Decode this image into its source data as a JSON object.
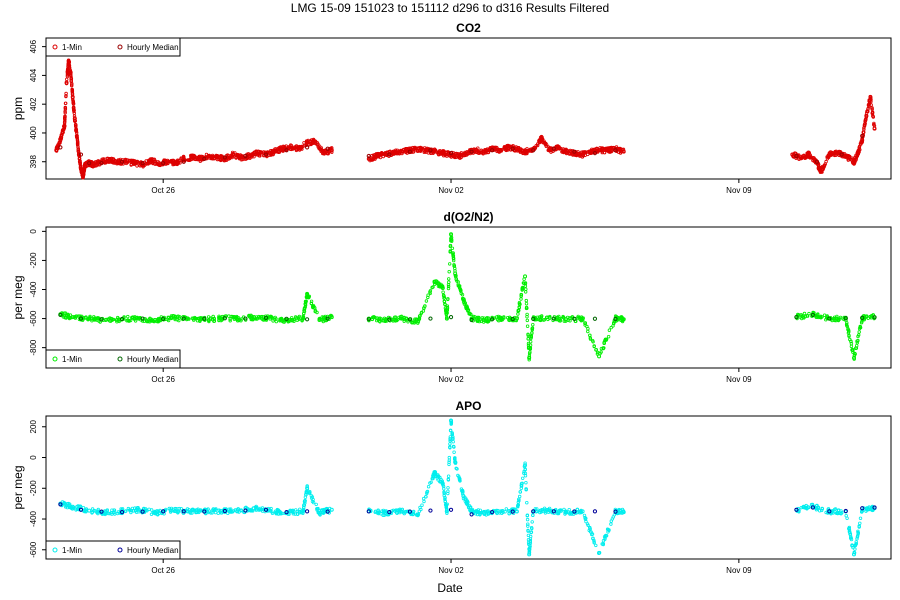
{
  "title": "LMG   15-09    151023 to 151112    d296 to d316   Results Filtered",
  "xlabel": "Date",
  "chart_data": [
    {
      "type": "scatter",
      "title": "CO2",
      "ylabel": "ppm",
      "xlim": [
        296.15,
        316.7
      ],
      "ylim": [
        396.8,
        406.6
      ],
      "yticks": [
        398,
        400,
        402,
        404,
        406
      ],
      "xticks": [
        {
          "value": 299,
          "label": "Oct 26"
        },
        {
          "value": 306,
          "label": "Nov 02"
        },
        {
          "value": 313,
          "label": "Nov 09"
        }
      ],
      "legend": {
        "position": "top-left",
        "entries": [
          "1-Min",
          "Hourly Median"
        ]
      },
      "colors": {
        "min": "#dd0000",
        "median": "#990000"
      },
      "series": [
        {
          "name": "1-Min",
          "x": [
            296.4,
            296.5,
            296.6,
            296.65,
            296.7,
            296.75,
            296.8,
            296.85,
            296.9,
            296.95,
            297.0,
            297.05,
            297.1,
            297.2,
            297.3,
            297.5,
            297.7,
            297.9,
            298.1,
            298.3,
            298.5,
            298.7,
            298.9,
            299.1,
            299.3,
            299.5,
            299.7,
            299.9,
            300.1,
            300.3,
            300.5,
            300.7,
            300.9,
            301.1,
            301.3,
            301.5,
            301.7,
            301.9,
            302.1,
            302.3,
            302.5,
            302.7,
            302.9,
            303.1,
            304.0,
            304.2,
            304.4,
            304.6,
            304.8,
            305.0,
            305.2,
            305.4,
            305.6,
            305.8,
            306.0,
            306.2,
            306.4,
            306.6,
            306.8,
            307.0,
            307.2,
            307.4,
            307.6,
            307.8,
            308.0,
            308.2,
            308.4,
            308.6,
            308.8,
            309.0,
            309.2,
            309.4,
            309.6,
            309.8,
            310.0,
            310.2,
            314.3,
            314.5,
            314.7,
            314.9,
            315.0,
            315.2,
            315.4,
            315.6,
            315.8,
            315.9,
            316.0,
            316.1,
            316.2,
            316.3
          ],
          "y": [
            398.8,
            399.5,
            400.5,
            403.5,
            405.0,
            404.2,
            402.5,
            401.0,
            399.8,
            398.5,
            397.5,
            397.0,
            397.8,
            397.9,
            397.8,
            398.0,
            398.1,
            398.0,
            398.0,
            397.9,
            397.8,
            398.1,
            397.9,
            398.0,
            397.9,
            398.2,
            398.3,
            398.2,
            398.4,
            398.3,
            398.2,
            398.5,
            398.3,
            398.4,
            398.6,
            398.5,
            398.7,
            398.9,
            399.0,
            398.9,
            399.3,
            399.4,
            398.6,
            398.8,
            398.2,
            398.4,
            398.5,
            398.6,
            398.7,
            398.8,
            398.9,
            398.8,
            398.7,
            398.6,
            398.5,
            398.4,
            398.6,
            398.8,
            398.7,
            398.9,
            398.8,
            399.0,
            398.9,
            398.7,
            398.9,
            399.6,
            398.8,
            399.0,
            398.7,
            398.6,
            398.5,
            398.7,
            398.8,
            398.8,
            398.9,
            398.7,
            398.5,
            398.3,
            398.5,
            397.9,
            397.3,
            398.5,
            398.6,
            398.4,
            398.0,
            398.6,
            399.5,
            401.2,
            402.5,
            400.3
          ]
        },
        {
          "name": "Hourly Median",
          "x": [
            296.5,
            297.0,
            297.2,
            297.5,
            298.0,
            298.5,
            299.0,
            299.5,
            300.0,
            300.5,
            301.0,
            301.5,
            302.0,
            302.5,
            303.0,
            304.0,
            304.5,
            305.0,
            305.5,
            306.0,
            306.5,
            307.0,
            307.5,
            308.0,
            308.5,
            309.0,
            309.5,
            310.0,
            314.4,
            314.9,
            315.5,
            316.0
          ],
          "y": [
            399.0,
            398.5,
            397.9,
            397.9,
            398.0,
            397.9,
            397.9,
            398.0,
            398.2,
            398.3,
            398.4,
            398.5,
            398.8,
            399.0,
            398.9,
            398.4,
            398.5,
            398.7,
            398.8,
            398.6,
            398.7,
            398.8,
            398.9,
            398.8,
            398.9,
            398.7,
            398.6,
            398.8,
            398.4,
            398.0,
            398.5,
            399.8
          ]
        }
      ]
    },
    {
      "type": "scatter",
      "title": "d(O2/N2)",
      "ylabel": "per meg",
      "xlim": [
        296.15,
        316.7
      ],
      "ylim": [
        -940,
        30
      ],
      "yticks": [
        -800,
        -600,
        -400,
        -200,
        0
      ],
      "xticks": [
        {
          "value": 299,
          "label": "Oct 26"
        },
        {
          "value": 306,
          "label": "Nov 02"
        },
        {
          "value": 313,
          "label": "Nov 09"
        }
      ],
      "legend": {
        "position": "bottom-left",
        "entries": [
          "1-Min",
          "Hourly Median"
        ]
      },
      "colors": {
        "min": "#00ee00",
        "median": "#006600"
      },
      "series": [
        {
          "name": "1-Min",
          "x": [
            296.5,
            296.8,
            297.2,
            297.6,
            298.0,
            298.4,
            298.8,
            299.2,
            299.6,
            300.0,
            300.4,
            300.8,
            301.2,
            301.6,
            302.0,
            302.4,
            302.5,
            302.8,
            303.1,
            304.0,
            304.4,
            304.8,
            305.2,
            305.6,
            305.8,
            305.9,
            306.0,
            306.1,
            306.3,
            306.5,
            306.8,
            307.2,
            307.6,
            307.8,
            307.9,
            308.0,
            308.4,
            308.8,
            309.2,
            309.6,
            310.0,
            310.2,
            314.4,
            314.8,
            315.2,
            315.6,
            315.8,
            316.0,
            316.3
          ],
          "y": [
            -570,
            -590,
            -600,
            -610,
            -605,
            -600,
            -610,
            -595,
            -600,
            -605,
            -598,
            -602,
            -590,
            -600,
            -610,
            -600,
            -430,
            -610,
            -590,
            -600,
            -610,
            -600,
            -620,
            -350,
            -390,
            -600,
            -20,
            -290,
            -470,
            -600,
            -610,
            -600,
            -600,
            -310,
            -870,
            -600,
            -595,
            -605,
            -600,
            -860,
            -600,
            -605,
            -590,
            -570,
            -600,
            -600,
            -870,
            -595,
            -590
          ]
        },
        {
          "name": "Hourly Median",
          "x": [
            296.5,
            297.0,
            297.5,
            298.0,
            298.5,
            299.0,
            299.5,
            300.0,
            300.5,
            301.0,
            301.5,
            302.0,
            302.5,
            303.0,
            304.0,
            304.5,
            305.0,
            305.5,
            306.0,
            306.5,
            307.0,
            307.5,
            308.0,
            308.5,
            309.0,
            309.5,
            310.0,
            314.4,
            314.8,
            315.2,
            315.6,
            316.0,
            316.3
          ],
          "y": [
            -575,
            -600,
            -605,
            -603,
            -600,
            -602,
            -600,
            -601,
            -598,
            -600,
            -595,
            -602,
            -605,
            -600,
            -605,
            -607,
            -605,
            -600,
            -590,
            -610,
            -605,
            -603,
            -602,
            -600,
            -602,
            -601,
            -603,
            -590,
            -575,
            -600,
            -598,
            -595,
            -592
          ]
        }
      ]
    },
    {
      "type": "scatter",
      "title": "APO",
      "ylabel": "per meg",
      "xlim": [
        296.15,
        316.7
      ],
      "ylim": [
        -660,
        270
      ],
      "yticks": [
        -600,
        -400,
        -200,
        0,
        200
      ],
      "xticks": [
        {
          "value": 299,
          "label": "Oct 26"
        },
        {
          "value": 306,
          "label": "Nov 02"
        },
        {
          "value": 313,
          "label": "Nov 09"
        }
      ],
      "legend": {
        "position": "bottom-left",
        "entries": [
          "1-Min",
          "Hourly Median"
        ]
      },
      "colors": {
        "min": "#00eeee",
        "median": "#000099"
      },
      "series": [
        {
          "name": "1-Min",
          "x": [
            296.5,
            296.8,
            297.2,
            297.6,
            298.0,
            298.4,
            298.8,
            299.2,
            299.6,
            300.0,
            300.4,
            300.8,
            301.2,
            301.6,
            302.0,
            302.4,
            302.5,
            302.8,
            303.1,
            304.0,
            304.4,
            304.8,
            305.2,
            305.6,
            305.8,
            305.9,
            306.0,
            306.1,
            306.3,
            306.5,
            306.8,
            307.2,
            307.6,
            307.8,
            307.9,
            308.0,
            308.4,
            308.8,
            309.2,
            309.6,
            310.0,
            310.2,
            314.4,
            314.8,
            315.2,
            315.6,
            315.8,
            316.0,
            316.3
          ],
          "y": [
            -300,
            -320,
            -345,
            -355,
            -350,
            -340,
            -360,
            -345,
            -350,
            -352,
            -348,
            -350,
            -330,
            -345,
            -360,
            -350,
            -200,
            -360,
            -340,
            -350,
            -360,
            -350,
            -370,
            -100,
            -170,
            -350,
            240,
            -30,
            -250,
            -350,
            -360,
            -350,
            -350,
            -50,
            -630,
            -350,
            -345,
            -355,
            -350,
            -620,
            -350,
            -355,
            -340,
            -320,
            -350,
            -350,
            -630,
            -345,
            -330
          ]
        },
        {
          "name": "Hourly Median",
          "x": [
            296.5,
            297.0,
            297.5,
            298.0,
            298.5,
            299.0,
            299.5,
            300.0,
            300.5,
            301.0,
            301.5,
            302.0,
            302.5,
            303.0,
            304.0,
            304.5,
            305.0,
            305.5,
            306.0,
            306.5,
            307.0,
            307.5,
            308.0,
            308.5,
            309.0,
            309.5,
            310.0,
            314.4,
            314.8,
            315.2,
            315.6,
            316.0,
            316.3
          ],
          "y": [
            -305,
            -340,
            -352,
            -355,
            -352,
            -350,
            -350,
            -351,
            -348,
            -345,
            -340,
            -355,
            -350,
            -352,
            -350,
            -355,
            -352,
            -345,
            -340,
            -370,
            -355,
            -352,
            -350,
            -350,
            -351,
            -350,
            -352,
            -340,
            -325,
            -350,
            -348,
            -330,
            -325
          ]
        }
      ]
    }
  ]
}
